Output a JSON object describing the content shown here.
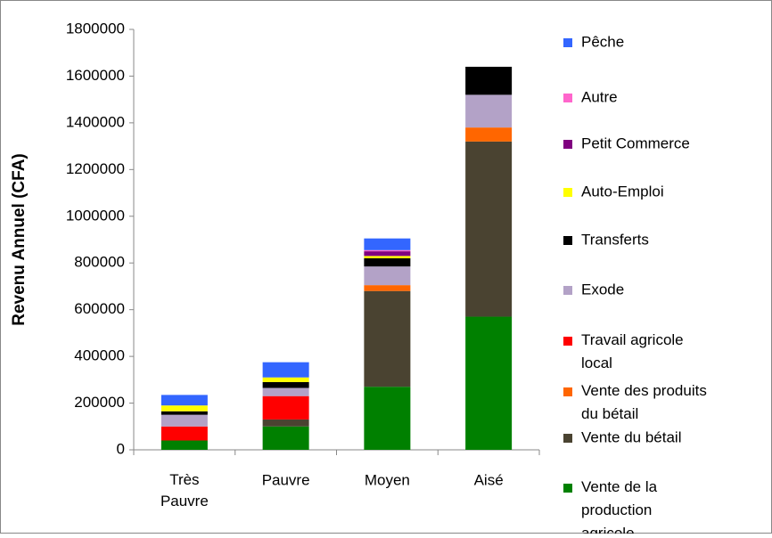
{
  "chart_data": {
    "type": "stacked_bar",
    "y_label": "Revenu Annuel (CFA)",
    "categories": [
      "Très Pauvre",
      "Pauvre",
      "Moyen",
      "Aisé"
    ],
    "ylim": [
      0,
      1800000
    ],
    "yticks": [
      0,
      200000,
      400000,
      600000,
      800000,
      1000000,
      1200000,
      1400000,
      1600000,
      1800000
    ],
    "grid": false,
    "legend": "right",
    "series": [
      {
        "name": "Vente de la production agricole",
        "color": "#008000",
        "values": [
          40000,
          100000,
          270000,
          570000
        ]
      },
      {
        "name": "Vente du bétail",
        "color": "#4a4331",
        "values": [
          0,
          30000,
          410000,
          750000
        ]
      },
      {
        "name": "Vente des produits du bétail",
        "color": "#ff6600",
        "values": [
          0,
          0,
          25000,
          60000
        ]
      },
      {
        "name": "Travail agricole local",
        "color": "#ff0000",
        "values": [
          60000,
          100000,
          0,
          0
        ]
      },
      {
        "name": "Exode",
        "color": "#b3a2c7",
        "values": [
          50000,
          35000,
          80000,
          140000
        ]
      },
      {
        "name": "Transferts",
        "color": "#000000",
        "values": [
          15000,
          25000,
          35000,
          120000
        ]
      },
      {
        "name": "Auto-Emploi",
        "color": "#ffff00",
        "values": [
          25000,
          20000,
          10000,
          0
        ]
      },
      {
        "name": "Petit Commerce",
        "color": "#800080",
        "values": [
          0,
          0,
          20000,
          0
        ]
      },
      {
        "name": "Autre",
        "color": "#ff66cc",
        "values": [
          0,
          0,
          5000,
          0
        ]
      },
      {
        "name": "Pêche",
        "color": "#3366ff",
        "values": [
          45000,
          65000,
          50000,
          0
        ]
      }
    ]
  }
}
